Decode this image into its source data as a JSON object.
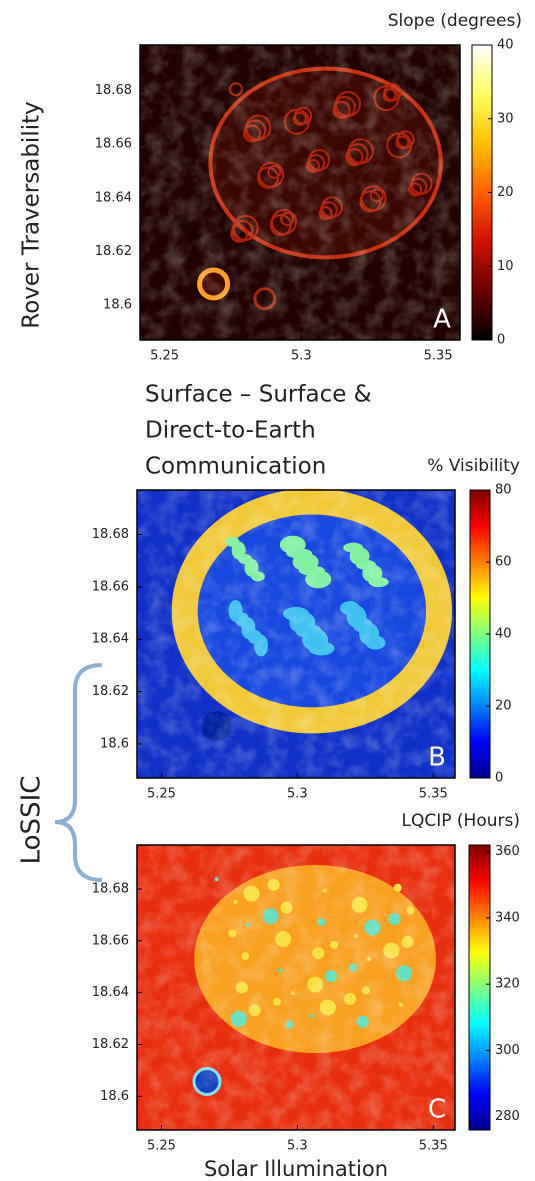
{
  "chart_data": [
    {
      "type": "heatmap",
      "side_label": "Rover Traversability",
      "colorbar_label": "Slope (degrees)",
      "panel_letter": "A",
      "colormap": "hot",
      "xlim": [
        5.241,
        5.358
      ],
      "xticks": [
        5.25,
        5.3,
        5.35
      ],
      "ylim": [
        18.587,
        18.697
      ],
      "yticks": [
        18.6,
        18.62,
        18.64,
        18.66,
        18.68
      ],
      "clim": [
        0,
        40
      ],
      "cticks": [
        0,
        10,
        20,
        30,
        40
      ]
    },
    {
      "type": "heatmap",
      "title": [
        "Surface – Surface &",
        "Direct-to-Earth",
        "Communication"
      ],
      "colorbar_label": "% Visibility",
      "panel_letter": "B",
      "colormap": "jet",
      "xlim": [
        5.241,
        5.358
      ],
      "xticks": [
        5.25,
        5.3,
        5.35
      ],
      "ylim": [
        18.587,
        18.697
      ],
      "yticks": [
        18.6,
        18.62,
        18.64,
        18.66,
        18.68
      ],
      "clim": [
        0,
        80
      ],
      "cticks": [
        0,
        20,
        40,
        60,
        80
      ]
    },
    {
      "type": "heatmap",
      "colorbar_label": "LQCIP (Hours)",
      "panel_letter": "C",
      "colormap": "jet",
      "xlabel": "Solar Illumination",
      "xlim": [
        5.241,
        5.358
      ],
      "xticks": [
        5.25,
        5.3,
        5.35
      ],
      "ylim": [
        18.587,
        18.697
      ],
      "yticks": [
        18.6,
        18.62,
        18.64,
        18.66,
        18.68
      ],
      "clim": [
        276,
        362
      ],
      "cticks": [
        280,
        300,
        320,
        340,
        360
      ]
    }
  ],
  "group_label": "LoSSIC"
}
